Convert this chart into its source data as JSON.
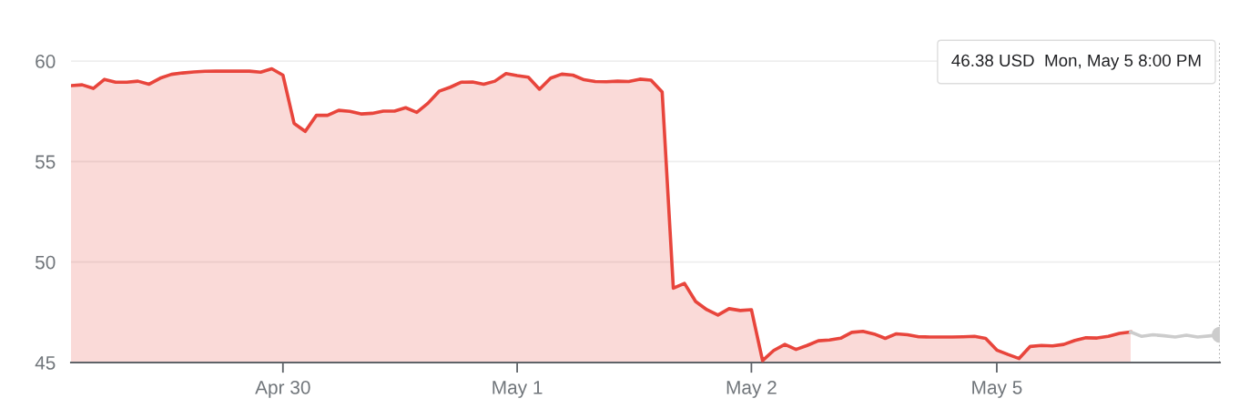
{
  "chart_data": {
    "type": "line",
    "categories": [
      null,
      null,
      null,
      null,
      null,
      null,
      null,
      null,
      null,
      null,
      null,
      null,
      null,
      null,
      null,
      null,
      null,
      null,
      null,
      "Apr 30",
      null,
      null,
      null,
      null,
      null,
      null,
      null,
      null,
      null,
      null,
      null,
      null,
      null,
      null,
      null,
      null,
      null,
      null,
      null,
      null,
      "May 1",
      null,
      null,
      null,
      null,
      null,
      null,
      null,
      null,
      null,
      null,
      null,
      null,
      null,
      null,
      null,
      null,
      null,
      null,
      null,
      null,
      "May 2",
      null,
      null,
      null,
      null,
      null,
      null,
      null,
      null,
      null,
      null,
      null,
      null,
      null,
      null,
      null,
      null,
      null,
      null,
      null,
      null,
      null,
      "May 5",
      null,
      null,
      null,
      null,
      null,
      null,
      null,
      null,
      null,
      null,
      null,
      null,
      null,
      null,
      null,
      null,
      null,
      null,
      null,
      null
    ],
    "ylim": [
      45,
      61
    ],
    "yticks": [
      45,
      50,
      55,
      60
    ],
    "grid": "y",
    "line_style": "solid",
    "series": [
      {
        "type": "area",
        "color": "#e8453c",
        "values": [
          58.78,
          58.82,
          58.64,
          59.09,
          58.95,
          58.95,
          59.0,
          58.85,
          59.15,
          59.34,
          59.41,
          59.46,
          59.49,
          59.5,
          59.5,
          59.5,
          59.5,
          59.45,
          59.62,
          59.3,
          56.9,
          56.5,
          57.3,
          57.3,
          57.55,
          57.5,
          57.37,
          57.4,
          57.51,
          57.51,
          57.68,
          57.45,
          57.9,
          58.5,
          58.7,
          58.95,
          58.96,
          58.85,
          59.0,
          59.38,
          59.28,
          59.2,
          58.6,
          59.15,
          59.35,
          59.3,
          59.07,
          58.98,
          58.97,
          59.0,
          58.98,
          59.1,
          59.05,
          58.46,
          48.7,
          48.94,
          48.04,
          47.63,
          47.36,
          47.68,
          47.59,
          47.63,
          45.1,
          45.6,
          45.9,
          45.65,
          45.85,
          46.08,
          46.12,
          46.21,
          46.5,
          46.55,
          46.42,
          46.2,
          46.43,
          46.38,
          46.28,
          46.27,
          46.27,
          46.27,
          46.28,
          46.3,
          46.2,
          45.62,
          45.4,
          45.2,
          45.8,
          45.85,
          45.83,
          45.9,
          46.1,
          46.23,
          46.22,
          46.3,
          46.45,
          46.52,
          null,
          null,
          null,
          null,
          null,
          null,
          null,
          null
        ]
      },
      {
        "color": "#cccccc",
        "values": [
          null,
          null,
          null,
          null,
          null,
          null,
          null,
          null,
          null,
          null,
          null,
          null,
          null,
          null,
          null,
          null,
          null,
          null,
          null,
          null,
          null,
          null,
          null,
          null,
          null,
          null,
          null,
          null,
          null,
          null,
          null,
          null,
          null,
          null,
          null,
          null,
          null,
          null,
          null,
          null,
          null,
          null,
          null,
          null,
          null,
          null,
          null,
          null,
          null,
          null,
          null,
          null,
          null,
          null,
          null,
          null,
          null,
          null,
          null,
          null,
          null,
          null,
          null,
          null,
          null,
          null,
          null,
          null,
          null,
          null,
          null,
          null,
          null,
          null,
          null,
          null,
          null,
          null,
          null,
          null,
          null,
          null,
          null,
          null,
          null,
          null,
          null,
          null,
          null,
          null,
          null,
          null,
          null,
          null,
          null,
          46.52,
          46.3,
          46.38,
          46.33,
          46.27,
          46.36,
          46.27,
          46.32,
          46.38
        ]
      },
      {
        "type": "scatter",
        "color": "#cccccc",
        "values": [
          null,
          null,
          null,
          null,
          null,
          null,
          null,
          null,
          null,
          null,
          null,
          null,
          null,
          null,
          null,
          null,
          null,
          null,
          null,
          null,
          null,
          null,
          null,
          null,
          null,
          null,
          null,
          null,
          null,
          null,
          null,
          null,
          null,
          null,
          null,
          null,
          null,
          null,
          null,
          null,
          null,
          null,
          null,
          null,
          null,
          null,
          null,
          null,
          null,
          null,
          null,
          null,
          null,
          null,
          null,
          null,
          null,
          null,
          null,
          null,
          null,
          null,
          null,
          null,
          null,
          null,
          null,
          null,
          null,
          null,
          null,
          null,
          null,
          null,
          null,
          null,
          null,
          null,
          null,
          null,
          null,
          null,
          null,
          null,
          null,
          null,
          null,
          null,
          null,
          null,
          null,
          null,
          null,
          null,
          null,
          null,
          null,
          null,
          null,
          null,
          null,
          null,
          null,
          46.38
        ]
      }
    ],
    "annotations": [
      "46.38 USD  Mon, May 5 8:00 PM"
    ]
  }
}
